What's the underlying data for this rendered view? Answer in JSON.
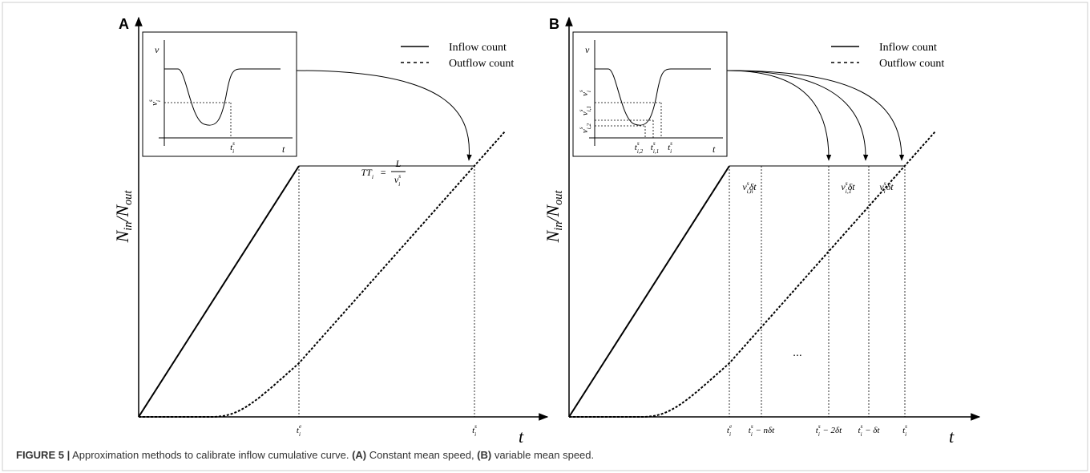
{
  "panels": [
    {
      "label": "A",
      "legend": [
        "Inflow count",
        "Outflow count"
      ],
      "y_axis_label": [
        {
          "t": "N"
        },
        {
          "sub": "in"
        },
        {
          "t": "/N"
        },
        {
          "sub": "out"
        }
      ],
      "x_axis_label": "t",
      "x_ticks": [
        [
          {
            "t": "t"
          },
          {
            "sub": "i",
            "sup": "e"
          }
        ],
        [
          {
            "t": "t"
          },
          {
            "sub": "i",
            "sup": "s"
          }
        ]
      ],
      "inset": {
        "y_label": "v",
        "x_label": "t",
        "y_ticks": [
          [
            {
              "t": "v"
            },
            {
              "sub": "i",
              "sup": "s"
            }
          ]
        ],
        "x_ticks": [
          [
            {
              "t": "t"
            },
            {
              "sub": "i",
              "sup": "s"
            }
          ]
        ]
      },
      "formula": {
        "lhs": [
          {
            "t": "TT"
          },
          {
            "sub": "i"
          }
        ],
        "eq": "=",
        "num": [
          {
            "t": "L"
          }
        ],
        "den": [
          {
            "t": "v"
          },
          {
            "sub": "i",
            "sup": "s"
          }
        ]
      }
    },
    {
      "label": "B",
      "legend": [
        "Inflow count",
        "Outflow count"
      ],
      "y_axis_label": [
        {
          "t": "N"
        },
        {
          "sub": "in"
        },
        {
          "t": "/N"
        },
        {
          "sub": "out"
        }
      ],
      "x_axis_label": "t",
      "x_ticks": [
        [
          {
            "t": "t"
          },
          {
            "sub": "i",
            "sup": "e"
          }
        ],
        [
          {
            "t": "t"
          },
          {
            "sub": "i",
            "sup": "s"
          },
          {
            "t": " − nδt"
          }
        ],
        [
          {
            "t": "t"
          },
          {
            "sub": "i",
            "sup": "s"
          },
          {
            "t": " − 2δt"
          }
        ],
        [
          {
            "t": "t"
          },
          {
            "sub": "i",
            "sup": "s"
          },
          {
            "t": " − δt"
          }
        ],
        [
          {
            "t": "t"
          },
          {
            "sub": "i",
            "sup": "s"
          }
        ]
      ],
      "inset": {
        "y_label": "v",
        "x_label": "t",
        "y_ticks": [
          [
            {
              "t": "v"
            },
            {
              "sub": "i,2",
              "sup": "s"
            }
          ],
          [
            {
              "t": "v"
            },
            {
              "sub": "i,1",
              "sup": "s"
            }
          ],
          [
            {
              "t": "v"
            },
            {
              "sub": "i",
              "sup": "s"
            }
          ]
        ],
        "x_ticks": [
          [
            {
              "t": "t"
            },
            {
              "sub": "i,2",
              "sup": "s"
            }
          ],
          [
            {
              "t": "t"
            },
            {
              "sub": "i,1",
              "sup": "s"
            }
          ],
          [
            {
              "t": "t"
            },
            {
              "sub": "i",
              "sup": "s"
            }
          ]
        ]
      },
      "annotations": [
        [
          {
            "t": "v"
          },
          {
            "sub": "i,n",
            "sup": "s"
          },
          {
            "t": "δt"
          }
        ],
        [
          {
            "t": "v"
          },
          {
            "sub": "i,1",
            "sup": "s"
          },
          {
            "t": "δt"
          }
        ],
        [
          {
            "t": "v"
          },
          {
            "sub": "i",
            "sup": "s"
          },
          {
            "t": "δt"
          }
        ]
      ],
      "ellipsis": "..."
    }
  ],
  "caption": [
    {
      "t": "FIGURE 5 |",
      "bold": true
    },
    {
      "t": " Approximation methods to calibrate inflow cumulative curve. "
    },
    {
      "t": "(A)",
      "bold": true
    },
    {
      "t": " Constant mean speed, "
    },
    {
      "t": "(B)",
      "bold": true
    },
    {
      "t": " variable mean speed."
    }
  ]
}
